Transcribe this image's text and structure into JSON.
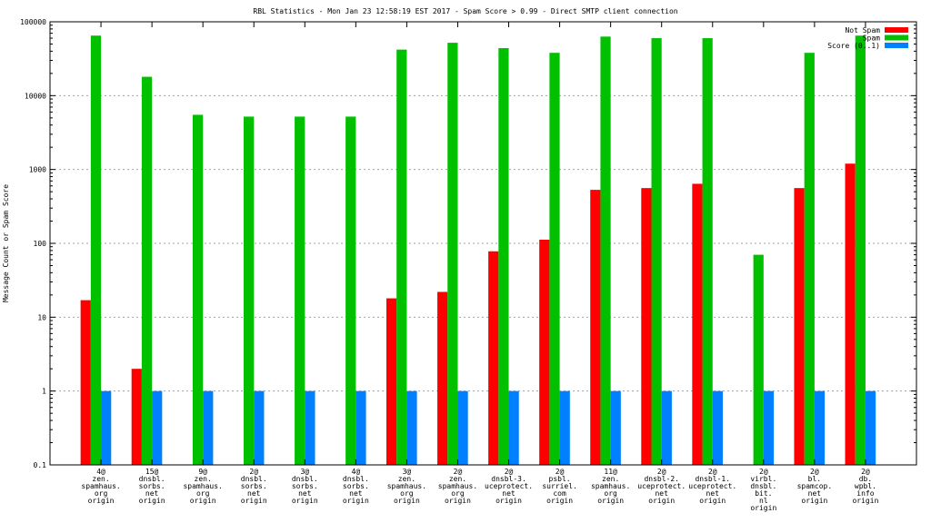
{
  "chart_data": {
    "type": "bar",
    "title": "RBL Statistics - Mon Jan 23 12:58:19 EST 2017 - Spam Score > 0.99 - Direct SMTP client connection",
    "xlabel": "",
    "ylabel": "Message Count or Spam Score",
    "scale": "log",
    "ylim": [
      0.1,
      100000
    ],
    "yticks": [
      "0.1",
      "1",
      "10",
      "100",
      "1000",
      "10000",
      "100000"
    ],
    "grid": true,
    "legend_position": "top-right",
    "categories": [
      [
        "4@",
        "zen.",
        "spamhaus.",
        "org",
        "origin"
      ],
      [
        "15@",
        "dnsbl.",
        "sorbs.",
        "net",
        "origin"
      ],
      [
        "9@",
        "zen.",
        "spamhaus.",
        "org",
        "origin"
      ],
      [
        "2@",
        "dnsbl.",
        "sorbs.",
        "net",
        "origin"
      ],
      [
        "3@",
        "dnsbl.",
        "sorbs.",
        "net",
        "origin"
      ],
      [
        "4@",
        "dnsbl.",
        "sorbs.",
        "net",
        "origin"
      ],
      [
        "3@",
        "zen.",
        "spamhaus.",
        "org",
        "origin"
      ],
      [
        "2@",
        "zen.",
        "spamhaus.",
        "org",
        "origin"
      ],
      [
        "2@",
        "dnsbl-3.",
        "uceprotect.",
        "net",
        "origin"
      ],
      [
        "2@",
        "psbl.",
        "surriel.",
        "com",
        "origin"
      ],
      [
        "11@",
        "zen.",
        "spamhaus.",
        "org",
        "origin"
      ],
      [
        "2@",
        "dnsbl-2.",
        "uceprotect.",
        "net",
        "origin"
      ],
      [
        "2@",
        "dnsbl-1.",
        "uceprotect.",
        "net",
        "origin"
      ],
      [
        "2@",
        "virbl.",
        "dnsbl.",
        "bit.",
        "nl",
        "origin"
      ],
      [
        "2@",
        "bl.",
        "spamcop.",
        "net",
        "origin"
      ],
      [
        "2@",
        "db.",
        "wpbl.",
        "info",
        "origin"
      ]
    ],
    "series": [
      {
        "name": "Not Spam",
        "color": "#ff0000",
        "values": [
          17,
          2,
          null,
          null,
          null,
          null,
          18,
          22,
          78,
          112,
          530,
          560,
          640,
          null,
          560,
          1200
        ]
      },
      {
        "name": "Spam",
        "color": "#00c000",
        "values": [
          65000,
          18000,
          5500,
          5200,
          5200,
          5200,
          42000,
          52000,
          44000,
          38000,
          63000,
          60000,
          60000,
          70,
          38000,
          65000
        ]
      },
      {
        "name": "Score (0..1)",
        "color": "#0080ff",
        "values": [
          1,
          1,
          1,
          1,
          1,
          1,
          1,
          1,
          1,
          1,
          1,
          1,
          1,
          1,
          1,
          1
        ]
      }
    ]
  }
}
